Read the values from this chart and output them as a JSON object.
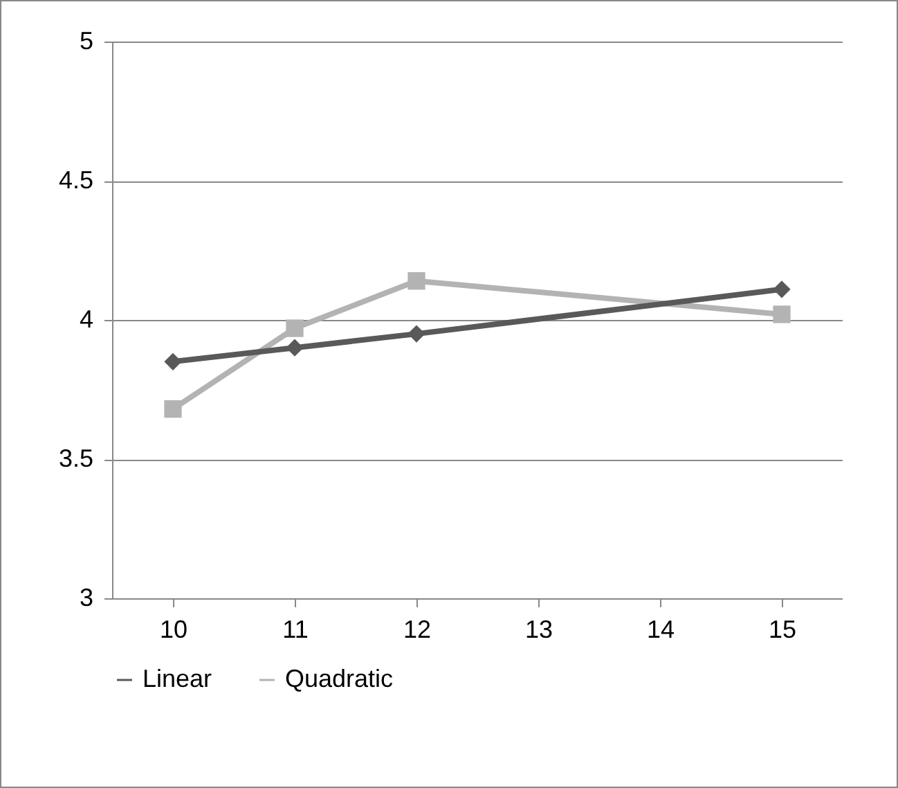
{
  "chart_data": {
    "type": "line",
    "x": [
      10,
      11,
      12,
      15
    ],
    "xlim": [
      9.5,
      15.5
    ],
    "xticks": [
      10,
      11,
      12,
      13,
      14,
      15
    ],
    "ylim": [
      3,
      5
    ],
    "yticks": [
      3,
      3.5,
      4,
      4.5,
      5
    ],
    "grid": "y",
    "legend": "bottom",
    "line_style": "solid",
    "series": [
      {
        "name": "Linear",
        "color": "#595959",
        "marker": "diamond",
        "values": [
          3.85,
          3.9,
          3.95,
          4.11
        ]
      },
      {
        "name": "Quadratic",
        "color": "#b3b3b3",
        "marker": "square",
        "values": [
          3.68,
          3.97,
          4.14,
          4.02
        ]
      }
    ]
  }
}
